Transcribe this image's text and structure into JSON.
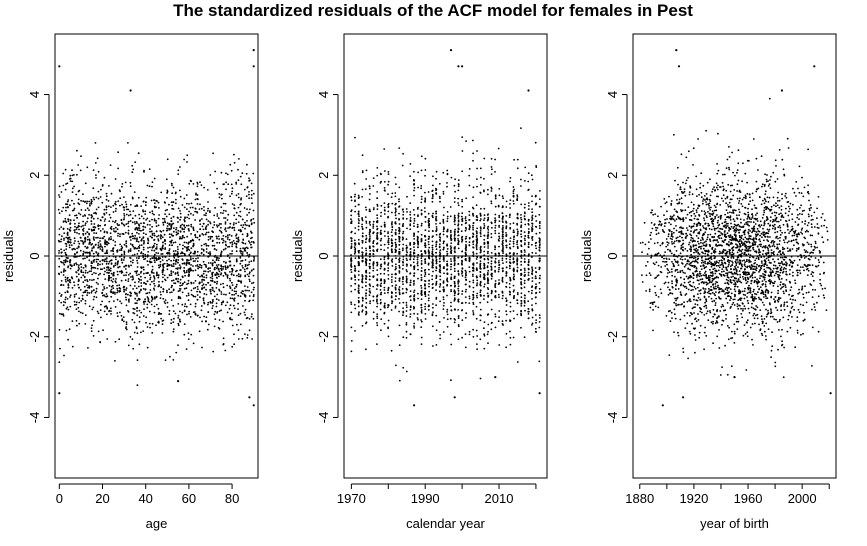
{
  "title": "The standardized residuals of the ACF model for females in Pest",
  "chart_data": [
    {
      "type": "scatter",
      "xlabel": "age",
      "ylabel": "residuals",
      "xlim": [
        -2,
        92
      ],
      "ylim": [
        -5.5,
        5.5
      ],
      "xticks": [
        0,
        20,
        40,
        60,
        80
      ],
      "xtick_labels": [
        "0",
        "20",
        "40",
        "60",
        "80"
      ],
      "yticks": [
        -4,
        -2,
        0,
        2,
        4
      ],
      "ytick_labels": [
        "-4",
        "-2",
        "0",
        "2",
        "4"
      ],
      "reference_line_y": 0,
      "notable_points": [
        {
          "x": 0,
          "y": 4.7
        },
        {
          "x": 90,
          "y": 5.1
        },
        {
          "x": 90,
          "y": 4.7
        },
        {
          "x": 33,
          "y": 4.1
        },
        {
          "x": 0,
          "y": -3.4
        },
        {
          "x": 88,
          "y": -3.5
        },
        {
          "x": 90,
          "y": -3.7
        },
        {
          "x": 55,
          "y": -3.1
        }
      ]
    },
    {
      "type": "scatter",
      "xlabel": "calendar year",
      "ylabel": "residuals",
      "xlim": [
        1968,
        2023
      ],
      "ylim": [
        -5.5,
        5.5
      ],
      "xticks": [
        1970,
        1990,
        2010
      ],
      "xtick_labels": [
        "1970",
        "1990",
        "2010"
      ],
      "xticks_minor": [
        1980,
        2000,
        2020
      ],
      "yticks": [
        -4,
        -2,
        0,
        2,
        4
      ],
      "ytick_labels": [
        "-4",
        "-2",
        "0",
        "2",
        "4"
      ],
      "reference_line_y": 0,
      "notable_points": [
        {
          "x": 1997,
          "y": 5.1
        },
        {
          "x": 1999,
          "y": 4.7
        },
        {
          "x": 2000,
          "y": 4.7
        },
        {
          "x": 2018,
          "y": 4.1
        },
        {
          "x": 1987,
          "y": -3.7
        },
        {
          "x": 1998,
          "y": -3.5
        },
        {
          "x": 2021,
          "y": -3.4
        },
        {
          "x": 2009,
          "y": -3.0
        }
      ]
    },
    {
      "type": "scatter",
      "xlabel": "year of birth",
      "ylabel": "residuals",
      "xlim": [
        1875,
        2025
      ],
      "ylim": [
        -5.5,
        5.5
      ],
      "xticks": [
        1880,
        1920,
        1960,
        2000
      ],
      "xtick_labels": [
        "1880",
        "1920",
        "1960",
        "2000"
      ],
      "xticks_minor": [
        1900,
        1940,
        1980,
        2020
      ],
      "yticks": [
        -4,
        -2,
        0,
        2,
        4
      ],
      "ytick_labels": [
        "-4",
        "-2",
        "0",
        "2",
        "4"
      ],
      "reference_line_y": 0,
      "notable_points": [
        {
          "x": 1907,
          "y": 5.1
        },
        {
          "x": 2009,
          "y": 4.7
        },
        {
          "x": 1909,
          "y": 4.7
        },
        {
          "x": 1985,
          "y": 4.1
        },
        {
          "x": 1897,
          "y": -3.7
        },
        {
          "x": 1912,
          "y": -3.5
        },
        {
          "x": 2021,
          "y": -3.4
        },
        {
          "x": 1950,
          "y": -3.0
        }
      ]
    }
  ]
}
